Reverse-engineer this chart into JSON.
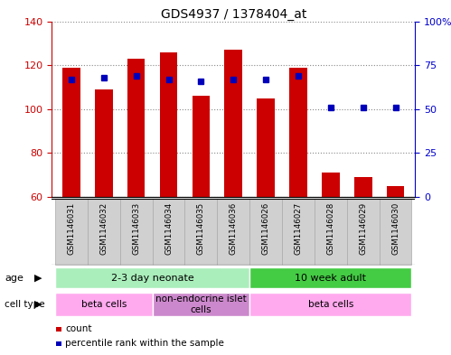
{
  "title": "GDS4937 / 1378404_at",
  "samples": [
    "GSM1146031",
    "GSM1146032",
    "GSM1146033",
    "GSM1146034",
    "GSM1146035",
    "GSM1146036",
    "GSM1146026",
    "GSM1146027",
    "GSM1146028",
    "GSM1146029",
    "GSM1146030"
  ],
  "counts": [
    119,
    109,
    123,
    126,
    106,
    127,
    105,
    119,
    71,
    69,
    65
  ],
  "percentiles": [
    67,
    68,
    69,
    67,
    66,
    67,
    67,
    69,
    51,
    51,
    51
  ],
  "ylim_left": [
    60,
    140
  ],
  "ylim_right": [
    0,
    100
  ],
  "yticks_left": [
    60,
    80,
    100,
    120,
    140
  ],
  "yticks_right": [
    0,
    25,
    50,
    75,
    100
  ],
  "ytick_right_labels": [
    "0",
    "25",
    "50",
    "75",
    "100%"
  ],
  "bar_color": "#cc0000",
  "dot_color": "#0000bb",
  "age_groups": [
    {
      "label": "2-3 day neonate",
      "start": 0,
      "end": 6,
      "color": "#aaeebb"
    },
    {
      "label": "10 week adult",
      "start": 6,
      "end": 11,
      "color": "#44cc44"
    }
  ],
  "cell_type_groups": [
    {
      "label": "beta cells",
      "start": 0,
      "end": 3,
      "color": "#ffaaee"
    },
    {
      "label": "non-endocrine islet\ncells",
      "start": 3,
      "end": 6,
      "color": "#cc88cc"
    },
    {
      "label": "beta cells",
      "start": 6,
      "end": 11,
      "color": "#ffaaee"
    }
  ],
  "grid_color": "#888888",
  "axis_color_left": "#cc0000",
  "axis_color_right": "#0000cc",
  "bar_width": 0.55,
  "dot_size": 4,
  "sample_box_color": "#d0d0d0",
  "sample_box_edge": "#aaaaaa"
}
